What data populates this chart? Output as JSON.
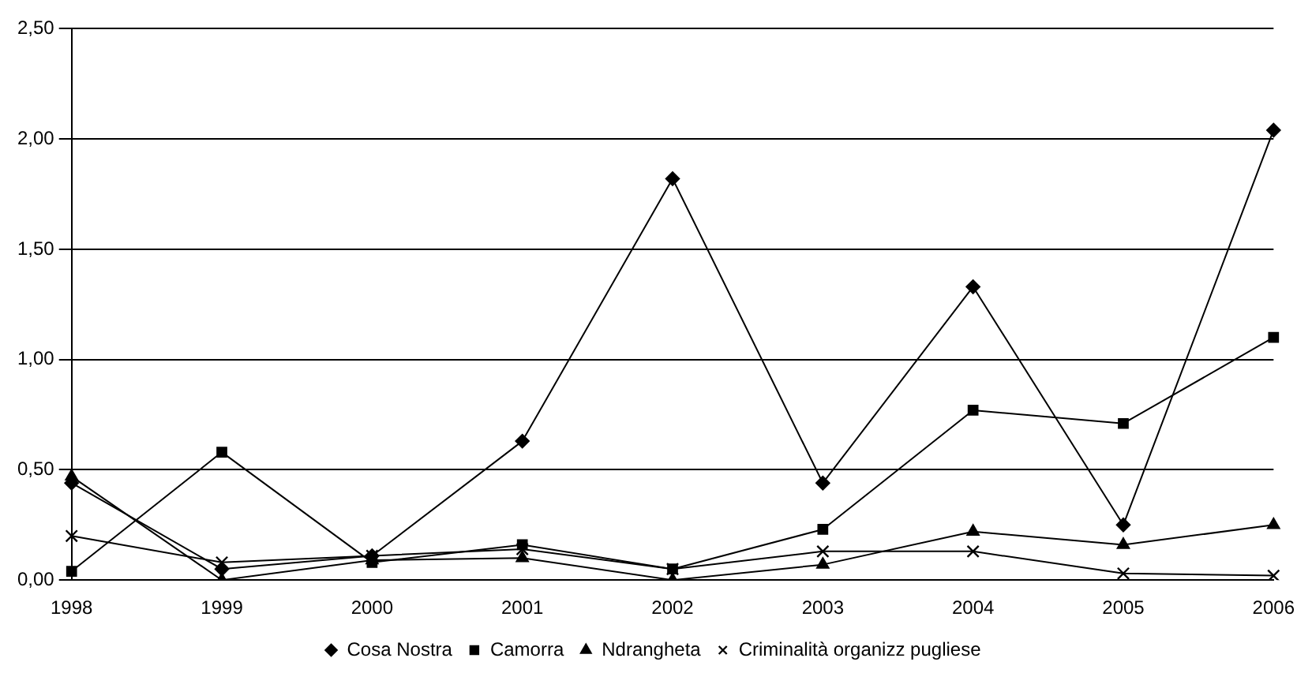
{
  "chart_data": {
    "type": "line",
    "categories": [
      "1998",
      "1999",
      "2000",
      "2001",
      "2002",
      "2003",
      "2004",
      "2005",
      "2006"
    ],
    "series": [
      {
        "name": "Cosa Nostra",
        "color": "#000000",
        "marker": "diamond",
        "values": [
          0.44,
          0.05,
          0.11,
          0.63,
          1.82,
          0.44,
          1.33,
          0.25,
          2.04
        ]
      },
      {
        "name": "Camorra",
        "color": "#000000",
        "marker": "square",
        "values": [
          0.04,
          0.58,
          0.08,
          0.16,
          0.05,
          0.23,
          0.77,
          0.71,
          1.1
        ]
      },
      {
        "name": "Ndrangheta",
        "color": "#000000",
        "marker": "triangle",
        "values": [
          0.47,
          0.0,
          0.09,
          0.1,
          0.0,
          0.07,
          0.22,
          0.16,
          0.25
        ]
      },
      {
        "name": "Criminalità organizz pugliese",
        "color": "#000000",
        "marker": "cross",
        "values": [
          0.2,
          0.08,
          0.11,
          0.14,
          0.05,
          0.13,
          0.13,
          0.03,
          0.02
        ]
      }
    ],
    "ylim": [
      0,
      2.5
    ],
    "yticks": [
      {
        "value": 0,
        "label": "0,00"
      },
      {
        "value": 0.5,
        "label": "0,50"
      },
      {
        "value": 1,
        "label": "1,00"
      },
      {
        "value": 1.5,
        "label": "1,50"
      },
      {
        "value": 2,
        "label": "2,00"
      },
      {
        "value": 2.5,
        "label": "2,50"
      }
    ],
    "grid": "y",
    "legend": "bottom",
    "line_style": "solid"
  }
}
